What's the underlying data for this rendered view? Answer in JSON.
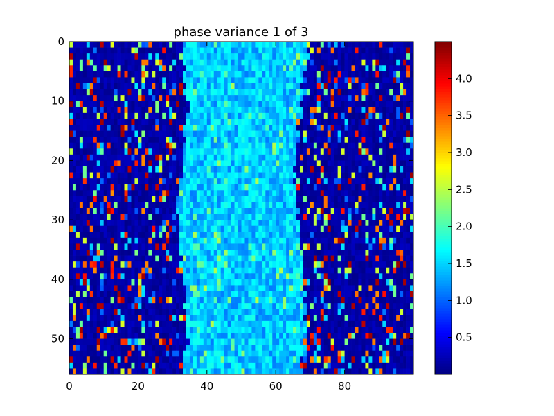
{
  "chart_data": {
    "type": "heatmap",
    "title": "phase variance 1 of 3",
    "xlabel": "",
    "ylabel": "",
    "rows": 56,
    "cols": 100,
    "xlim": [
      0,
      100
    ],
    "ylim": [
      56,
      0
    ],
    "xticks": [
      0,
      20,
      40,
      60,
      80
    ],
    "yticks": [
      0,
      10,
      20,
      30,
      40,
      50
    ],
    "colormap": "jet",
    "vmin": 0.0,
    "vmax": 4.5,
    "colorbar_ticks": [
      0.5,
      1.0,
      1.5,
      2.0,
      2.5,
      3.0,
      3.5,
      4.0
    ],
    "colorbar_ticklabels": [
      "0.5",
      "1.0",
      "1.5",
      "2.0",
      "2.5",
      "3.0",
      "3.5",
      "4.0"
    ],
    "grid": false,
    "structure": {
      "background_level": 0.05,
      "band_columns": [
        32,
        68
      ],
      "band_level_range": [
        1.1,
        1.8
      ],
      "scatter_levels": [
        1.0,
        1.5,
        2.2,
        2.6,
        3.4,
        3.8,
        4.3
      ],
      "note_values_estimated": true
    }
  }
}
